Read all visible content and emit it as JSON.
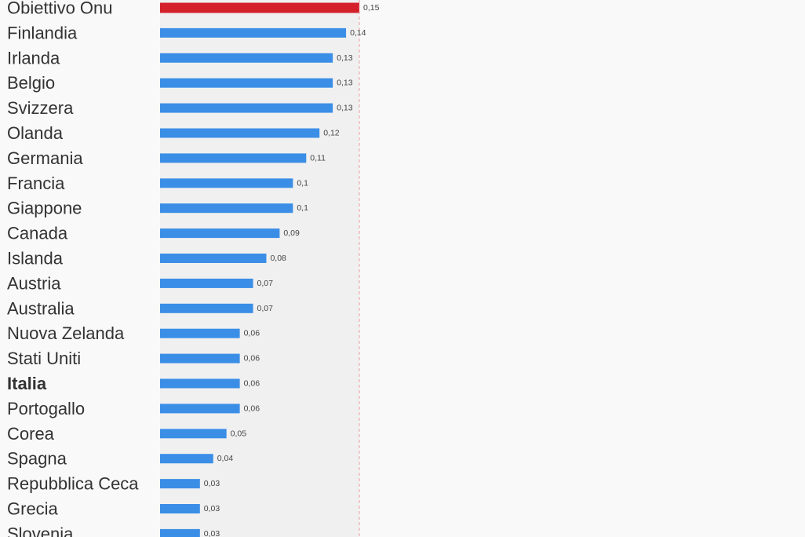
{
  "chart_data": {
    "type": "bar",
    "orientation": "horizontal",
    "categories": [
      "Obiettivo Onu",
      "Finlandia",
      "Irlanda",
      "Belgio",
      "Svizzera",
      "Olanda",
      "Germania",
      "Francia",
      "Giappone",
      "Canada",
      "Islanda",
      "Austria",
      "Australia",
      "Nuova Zelanda",
      "Stati Uniti",
      "Italia",
      "Portogallo",
      "Corea",
      "Spagna",
      "Repubblica Ceca",
      "Grecia",
      "Slovenia"
    ],
    "values": [
      0.15,
      0.14,
      0.13,
      0.13,
      0.13,
      0.12,
      0.11,
      0.1,
      0.1,
      0.09,
      0.08,
      0.07,
      0.07,
      0.06,
      0.06,
      0.06,
      0.06,
      0.05,
      0.04,
      0.03,
      0.03,
      0.03
    ],
    "value_labels": [
      "0,15",
      "0,14",
      "0,13",
      "0,13",
      "0,13",
      "0,12",
      "0,11",
      "0,1",
      "0,1",
      "0,09",
      "0,08",
      "0,07",
      "0,07",
      "0,06",
      "0,06",
      "0,06",
      "0,06",
      "0,05",
      "0,04",
      "0,03",
      "0,03",
      "0,03"
    ],
    "highlight_category": "Obiettivo Onu",
    "bold_category": "Italia",
    "reference_line": 0.15,
    "xlim": [
      0,
      0.15
    ],
    "colors": {
      "bar": "#3a8ee6",
      "highlight": "#d3202a",
      "reference_line": "#e8a0a4",
      "plot_background": "#f0f0f0",
      "label": "#333333"
    }
  }
}
